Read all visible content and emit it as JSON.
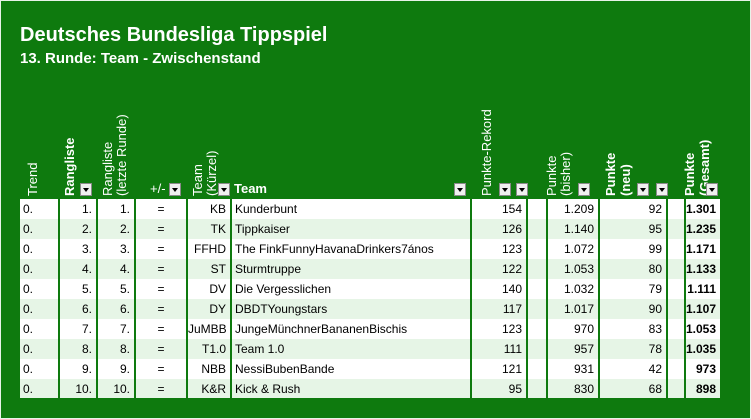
{
  "title": "Deutsches Bundesliga Tippspiel",
  "subtitle": "13. Runde: Team - Zwischenstand",
  "headers": {
    "trend": "Trend",
    "rangliste": "Rangliste",
    "rangliste_letzte_1": "Rangliste",
    "rangliste_letzte_2": "(letzte Runde)",
    "plusminus": "+/-",
    "team_abbr_1": "Team",
    "team_abbr_2": "(Kürzel)",
    "team": "Team",
    "punkte_rekord": "Punkte-Rekord",
    "punkte_bisher_1": "Punkte",
    "punkte_bisher_2": "(bisher)",
    "punkte_neu_1": "Punkte",
    "punkte_neu_2": "(neu)",
    "punkte_gesamt_1": "Punkte",
    "punkte_gesamt_2": "(Gesamt)"
  },
  "rows": [
    {
      "trend": "0.",
      "rank": "1.",
      "last": "1.",
      "pm": "=",
      "abbr": "KB",
      "team": "Kunderbunt",
      "rekord": "154",
      "bisher": "1.209",
      "neu": "92",
      "gesamt": "1.301"
    },
    {
      "trend": "0.",
      "rank": "2.",
      "last": "2.",
      "pm": "=",
      "abbr": "TK",
      "team": "Tippkaiser",
      "rekord": "126",
      "bisher": "1.140",
      "neu": "95",
      "gesamt": "1.235"
    },
    {
      "trend": "0.",
      "rank": "3.",
      "last": "3.",
      "pm": "=",
      "abbr": "FFHD",
      "team": "The FinkFunnyHavanaDrinkers7ános",
      "rekord": "123",
      "bisher": "1.072",
      "neu": "99",
      "gesamt": "1.171"
    },
    {
      "trend": "0.",
      "rank": "4.",
      "last": "4.",
      "pm": "=",
      "abbr": "ST",
      "team": "Sturmtruppe",
      "rekord": "122",
      "bisher": "1.053",
      "neu": "80",
      "gesamt": "1.133"
    },
    {
      "trend": "0.",
      "rank": "5.",
      "last": "5.",
      "pm": "=",
      "abbr": "DV",
      "team": "Die Vergesslichen",
      "rekord": "140",
      "bisher": "1.032",
      "neu": "79",
      "gesamt": "1.111"
    },
    {
      "trend": "0.",
      "rank": "6.",
      "last": "6.",
      "pm": "=",
      "abbr": "DY",
      "team": "DBDTYoungstars",
      "rekord": "117",
      "bisher": "1.017",
      "neu": "90",
      "gesamt": "1.107"
    },
    {
      "trend": "0.",
      "rank": "7.",
      "last": "7.",
      "pm": "=",
      "abbr": "JuMBB",
      "team": "JungeMünchnerBananenBischis",
      "rekord": "123",
      "bisher": "970",
      "neu": "83",
      "gesamt": "1.053"
    },
    {
      "trend": "0.",
      "rank": "8.",
      "last": "8.",
      "pm": "=",
      "abbr": "T1.0",
      "team": "Team 1.0",
      "rekord": "111",
      "bisher": "957",
      "neu": "78",
      "gesamt": "1.035"
    },
    {
      "trend": "0.",
      "rank": "9.",
      "last": "9.",
      "pm": "=",
      "abbr": "NBB",
      "team": "NessiBubenBande",
      "rekord": "121",
      "bisher": "931",
      "neu": "42",
      "gesamt": "973"
    },
    {
      "trend": "0.",
      "rank": "10.",
      "last": "10.",
      "pm": "=",
      "abbr": "K&R",
      "team": "Kick & Rush",
      "rekord": "95",
      "bisher": "830",
      "neu": "68",
      "gesamt": "898"
    }
  ],
  "colors": {
    "background": "#0e7a0e",
    "row_even": "#ffffff",
    "row_odd": "#e6f5e6"
  }
}
